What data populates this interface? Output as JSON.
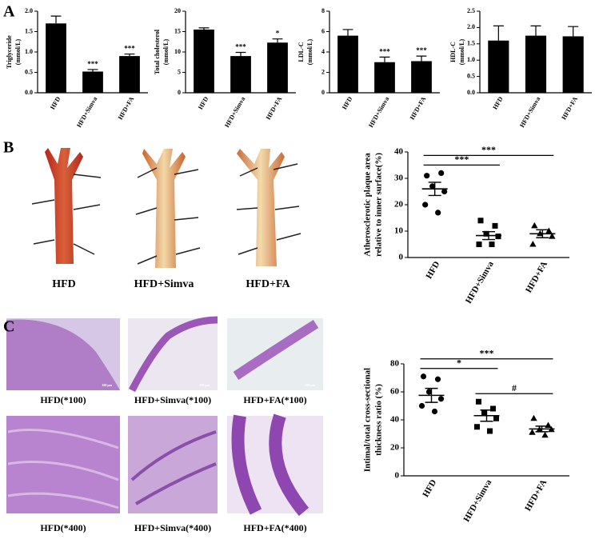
{
  "panel_labels": [
    "A",
    "B",
    "C"
  ],
  "images": {
    "B": [
      "HFD",
      "HFD+Simva",
      "HFD+FA"
    ],
    "C": [
      "HFD(*100)",
      "HFD+Simva(*100)",
      "HFD+FA(*100)",
      "HFD(*400)",
      "HFD+Simva(*400)",
      "HFD+FA(*400)"
    ],
    "scale_bar": "100 μm"
  },
  "chart_data": [
    {
      "type": "bar",
      "ylabel": [
        "Triglyceride",
        "(mmol/L)"
      ],
      "categories": [
        "HFD",
        "HFD+Simva",
        "HFD+FA"
      ],
      "values": [
        1.7,
        0.52,
        0.9
      ],
      "errors": [
        0.18,
        0.05,
        0.05
      ],
      "color": "#000000",
      "ylim": [
        0,
        2
      ],
      "yticks": [
        {
          "value": 0,
          "label": "0.0"
        },
        0.5,
        {
          "value": 1,
          "label": "1.0"
        },
        1.5,
        {
          "value": 2,
          "label": "2.0"
        }
      ],
      "annotations": [
        {
          "index": 1,
          "label": "***"
        },
        {
          "index": 2,
          "label": "***"
        }
      ]
    },
    {
      "type": "bar",
      "ylabel": [
        "Total cholesterol",
        "(mmol/L)"
      ],
      "categories": [
        "HFD",
        "HFD+Simva",
        "HFD+FA"
      ],
      "values": [
        15.5,
        9.0,
        12.3
      ],
      "errors": [
        0.4,
        0.9,
        0.9
      ],
      "color": "#000000",
      "ylim": [
        0,
        20
      ],
      "yticks": [
        0,
        5,
        10,
        15,
        20
      ],
      "annotations": [
        {
          "index": 1,
          "label": "***"
        },
        {
          "index": 2,
          "label": "*"
        }
      ]
    },
    {
      "type": "bar",
      "ylabel": [
        "LDL-C",
        "(mmol/L)"
      ],
      "categories": [
        "HFD",
        "HFD+Simva",
        "HFD+FA"
      ],
      "values": [
        5.6,
        3.0,
        3.1
      ],
      "errors": [
        0.6,
        0.5,
        0.5
      ],
      "color": "#000000",
      "ylim": [
        0,
        8
      ],
      "yticks": [
        0,
        2,
        4,
        6,
        8
      ],
      "annotations": [
        {
          "index": 1,
          "label": "***"
        },
        {
          "index": 2,
          "label": "***"
        }
      ]
    },
    {
      "type": "bar",
      "ylabel": [
        "HDL-C",
        "(mmol/L)"
      ],
      "categories": [
        "HFD",
        "HFD+Simva",
        "HFD+FA"
      ],
      "values": [
        1.6,
        1.75,
        1.73
      ],
      "errors": [
        0.45,
        0.3,
        0.3
      ],
      "color": "#000000",
      "ylim": [
        0,
        2.5
      ],
      "yticks": [
        {
          "value": 0,
          "label": "0.0"
        },
        0.5,
        {
          "value": 1,
          "label": "1.0"
        },
        1.5,
        {
          "value": 2,
          "label": "2.0"
        },
        2.5
      ],
      "annotations": []
    },
    {
      "type": "scatter",
      "ylabel": [
        "Atherosclerotic plaque area",
        "relative to inner surface(%)"
      ],
      "categories": [
        "HFD",
        "HFD+Simva",
        "HFD+FA"
      ],
      "points": [
        [
          31,
          32,
          27,
          25,
          20,
          17
        ],
        [
          14,
          12,
          9,
          8,
          5,
          5
        ],
        [
          12,
          10,
          9,
          8,
          5
        ]
      ],
      "mean": [
        26,
        8.3,
        9
      ],
      "sem": [
        2.5,
        1.5,
        1.5
      ],
      "markers": [
        "circle",
        "square",
        "triangle"
      ],
      "color": "#000000",
      "ylim": [
        0,
        40
      ],
      "yticks": [
        0,
        10,
        20,
        30,
        40
      ],
      "comparisons": [
        {
          "from": 0,
          "to": 1,
          "label": "***"
        },
        {
          "from": 0,
          "to": 2,
          "label": "***"
        }
      ]
    },
    {
      "type": "scatter",
      "ylabel": [
        "Intimal/total cross-sectional",
        "thickness ratio (%)"
      ],
      "categories": [
        "HFD",
        "HFD+Simva",
        "HFD+FA"
      ],
      "points": [
        [
          71,
          69,
          60,
          55,
          50,
          46
        ],
        [
          53,
          48,
          45,
          41,
          35,
          32
        ],
        [
          41,
          36,
          33,
          33,
          31,
          29
        ]
      ],
      "mean": [
        57.5,
        43,
        33.5
      ],
      "sem": [
        5,
        4,
        2
      ],
      "markers": [
        "circle",
        "square",
        "triangle"
      ],
      "color": "#000000",
      "ylim": [
        0,
        80
      ],
      "yticks": [
        0,
        20,
        40,
        60,
        80
      ],
      "comparisons": [
        {
          "from": 0,
          "to": 1,
          "label": "*"
        },
        {
          "from": 0,
          "to": 2,
          "label": "***"
        },
        {
          "from": 1,
          "to": 2,
          "label": "#"
        }
      ]
    }
  ]
}
